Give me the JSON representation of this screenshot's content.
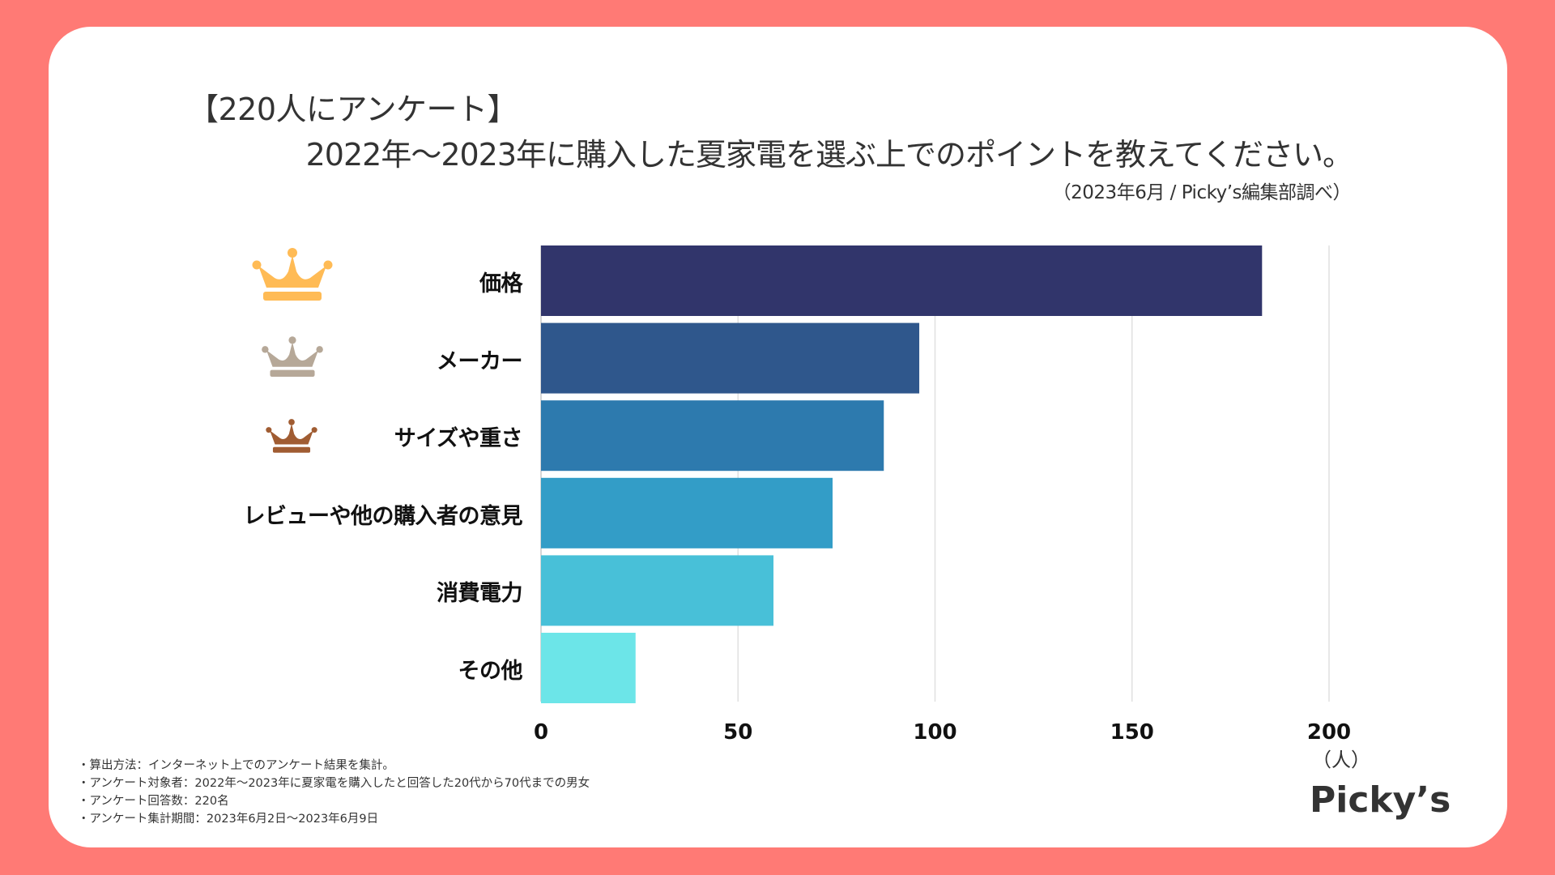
{
  "header": {
    "title_line1": "【220人にアンケート】",
    "title_line2": "2022年～2023年に購入した夏家電を選ぶ上でのポイントを教えてください。",
    "subtitle": "（2023年6月 / Picky’s編集部調べ）"
  },
  "ranking_icons": [
    {
      "rank": 1,
      "icon": "gold-crown-icon",
      "color": "#FFBB55"
    },
    {
      "rank": 2,
      "icon": "silver-crown-icon",
      "color": "#B6A898"
    },
    {
      "rank": 3,
      "icon": "bronze-crown-icon",
      "color": "#A05C32"
    }
  ],
  "chart_data": {
    "type": "bar",
    "orientation": "horizontal",
    "title": "2022年～2023年に購入した夏家電を選ぶ上でのポイントを教えてください。",
    "categories": [
      "価格",
      "メーカー",
      "サイズや重さ",
      "レビューや他の購入者の意見",
      "消費電力",
      "その他"
    ],
    "values": [
      183,
      96,
      87,
      74,
      59,
      24
    ],
    "colors": [
      "#31356B",
      "#2F578C",
      "#2D7AAE",
      "#339DC7",
      "#48C0D8",
      "#6CE5E8"
    ],
    "xlabel": "（人）",
    "ylabel": "",
    "xlim": [
      0,
      200
    ],
    "xticks": [
      "0",
      "50",
      "100",
      "150",
      "200"
    ],
    "xtick_values": [
      0,
      50,
      100,
      150,
      200
    ],
    "grid": true,
    "legend": "none"
  },
  "footer": {
    "notes": [
      "・算出方法：インターネット上でのアンケート結果を集計。",
      "・アンケート対象者：2022年～2023年に夏家電を購入したと回答した20代から70代までの男女",
      "・アンケート回答数：220名",
      "・アンケート集計期間：2023年6月2日～2023年6月9日"
    ],
    "logo": "Picky’s"
  }
}
